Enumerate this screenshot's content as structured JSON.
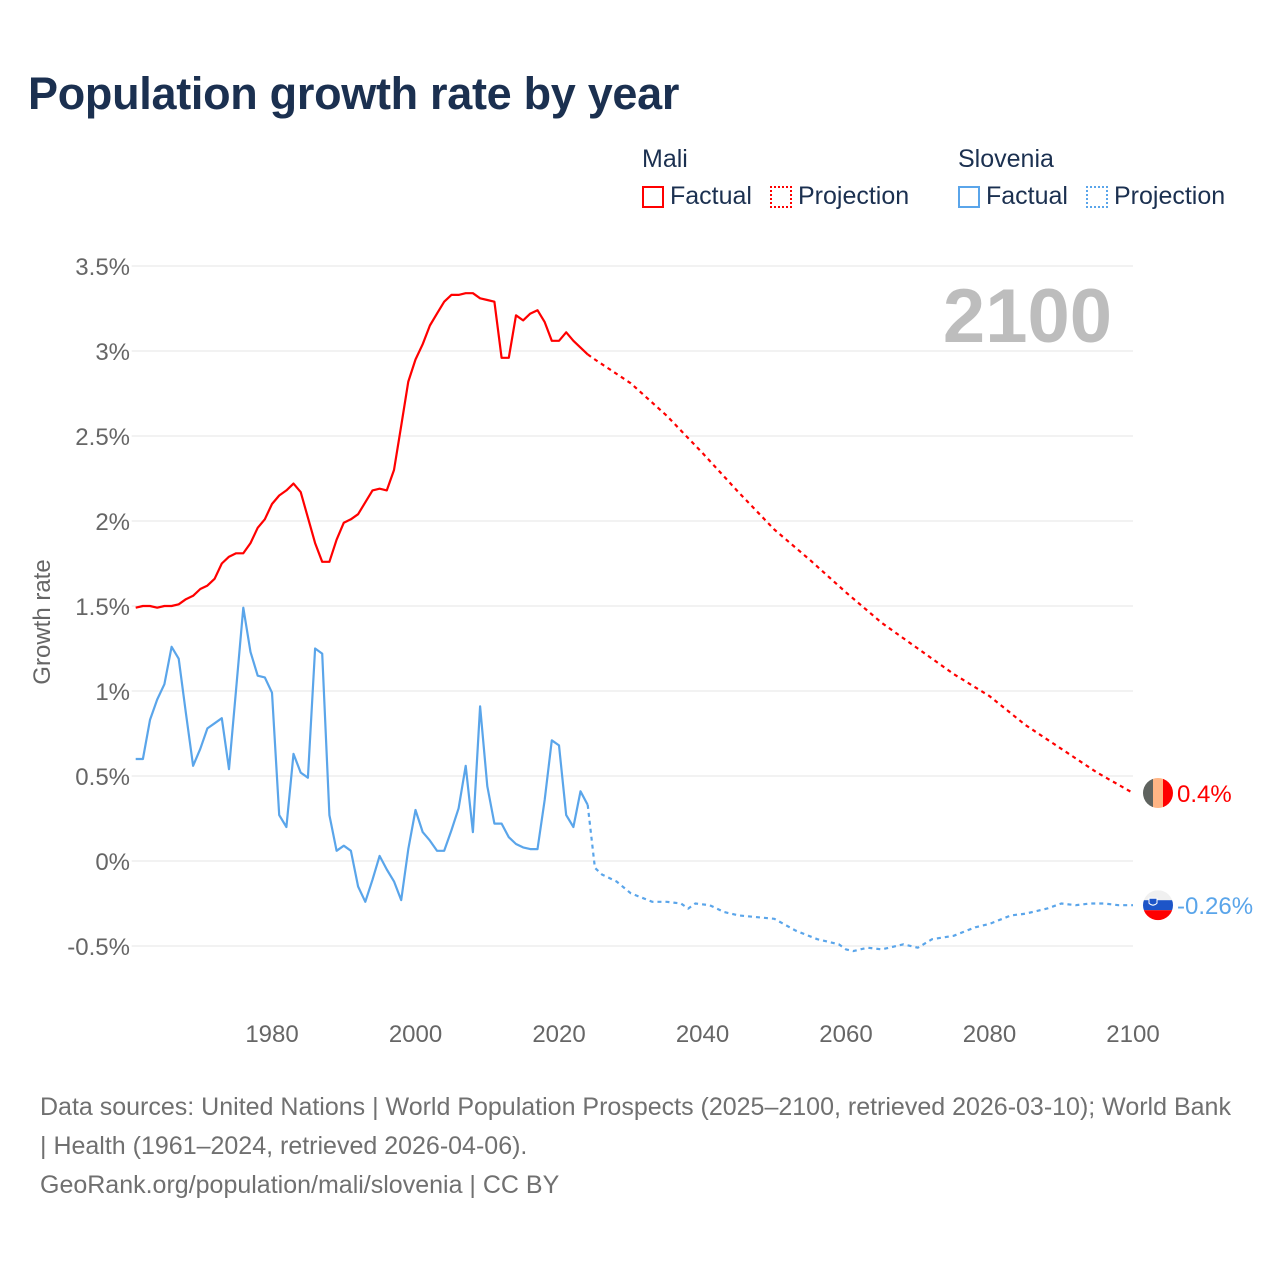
{
  "title": "Population growth rate by year",
  "legend": {
    "groups": [
      {
        "name": "Mali",
        "color": "#ff0000",
        "items": [
          "Factual",
          "Projection"
        ]
      },
      {
        "name": "Slovenia",
        "color": "#5aa5ea",
        "items": [
          "Factual",
          "Projection"
        ]
      }
    ]
  },
  "year_label": "2100",
  "footer": {
    "sources": "Data sources: United Nations | World Population Prospects (2025–2100, retrieved 2026-03-10); World Bank | Health (1961–2024, retrieved 2026-04-06).",
    "credit": "GeoRank.org/population/mali/slovenia | CC BY"
  },
  "chart_data": {
    "type": "line",
    "title": "Population growth rate by year",
    "xlabel": "",
    "ylabel": "Growth rate",
    "xlim": [
      1961,
      2100
    ],
    "ylim": [
      -0.5,
      3.5
    ],
    "x_ticks": [
      1980,
      2000,
      2020,
      2040,
      2060,
      2080,
      2100
    ],
    "y_ticks": [
      -0.5,
      0,
      0.5,
      1,
      1.5,
      2,
      2.5,
      3,
      3.5
    ],
    "y_tick_labels": [
      "-0.5%",
      "0%",
      "0.5%",
      "1%",
      "1.5%",
      "2%",
      "2.5%",
      "3%",
      "3.5%"
    ],
    "grid": true,
    "legend_position": "top-right",
    "series": [
      {
        "name": "Mali",
        "kind": "Factual",
        "color": "#ff0000",
        "end_label": "0.4%",
        "x": [
          1961,
          1962,
          1963,
          1964,
          1965,
          1966,
          1967,
          1968,
          1969,
          1970,
          1971,
          1972,
          1973,
          1974,
          1975,
          1976,
          1977,
          1978,
          1979,
          1980,
          1981,
          1982,
          1983,
          1984,
          1985,
          1986,
          1987,
          1988,
          1989,
          1990,
          1991,
          1992,
          1993,
          1994,
          1995,
          1996,
          1997,
          1998,
          1999,
          2000,
          2001,
          2002,
          2003,
          2004,
          2005,
          2006,
          2007,
          2008,
          2009,
          2010,
          2011,
          2012,
          2013,
          2014,
          2015,
          2016,
          2017,
          2018,
          2019,
          2020,
          2021,
          2022,
          2023,
          2024
        ],
        "values": [
          1.49,
          1.5,
          1.5,
          1.49,
          1.5,
          1.5,
          1.51,
          1.54,
          1.56,
          1.6,
          1.62,
          1.66,
          1.75,
          1.79,
          1.81,
          1.81,
          1.87,
          1.96,
          2.01,
          2.1,
          2.15,
          2.18,
          2.22,
          2.17,
          2.02,
          1.87,
          1.76,
          1.76,
          1.89,
          1.99,
          2.01,
          2.04,
          2.11,
          2.18,
          2.19,
          2.18,
          2.3,
          2.56,
          2.82,
          2.95,
          3.04,
          3.15,
          3.22,
          3.29,
          3.33,
          3.33,
          3.34,
          3.34,
          3.31,
          3.3,
          3.29,
          2.96,
          2.96,
          3.21,
          3.18,
          3.22,
          3.24,
          3.17,
          3.06,
          3.06,
          3.11,
          3.06,
          3.02,
          2.98
        ]
      },
      {
        "name": "Mali",
        "kind": "Projection",
        "color": "#ff0000",
        "x": [
          2024,
          2025,
          2030,
          2035,
          2040,
          2045,
          2050,
          2055,
          2060,
          2065,
          2070,
          2075,
          2080,
          2085,
          2090,
          2095,
          2100
        ],
        "values": [
          2.98,
          2.95,
          2.81,
          2.62,
          2.4,
          2.17,
          1.95,
          1.77,
          1.58,
          1.4,
          1.25,
          1.1,
          0.97,
          0.8,
          0.66,
          0.52,
          0.4
        ]
      },
      {
        "name": "Slovenia",
        "kind": "Factual",
        "color": "#5aa5ea",
        "end_label": "-0.26%",
        "x": [
          1961,
          1962,
          1963,
          1964,
          1965,
          1966,
          1967,
          1968,
          1969,
          1970,
          1971,
          1972,
          1973,
          1974,
          1975,
          1976,
          1977,
          1978,
          1979,
          1980,
          1981,
          1982,
          1983,
          1984,
          1985,
          1986,
          1987,
          1988,
          1989,
          1990,
          1991,
          1992,
          1993,
          1994,
          1995,
          1996,
          1997,
          1998,
          1999,
          2000,
          2001,
          2002,
          2003,
          2004,
          2005,
          2006,
          2007,
          2008,
          2009,
          2010,
          2011,
          2012,
          2013,
          2014,
          2015,
          2016,
          2017,
          2018,
          2019,
          2020,
          2021,
          2022,
          2023,
          2024
        ],
        "values": [
          0.6,
          0.6,
          0.83,
          0.95,
          1.04,
          1.26,
          1.19,
          0.87,
          0.56,
          0.66,
          0.78,
          0.81,
          0.84,
          0.54,
          1.01,
          1.49,
          1.23,
          1.09,
          1.08,
          0.99,
          0.27,
          0.2,
          0.63,
          0.52,
          0.49,
          1.25,
          1.22,
          0.27,
          0.06,
          0.09,
          0.06,
          -0.15,
          -0.24,
          -0.11,
          0.03,
          -0.05,
          -0.12,
          -0.23,
          0.07,
          0.3,
          0.17,
          0.12,
          0.06,
          0.06,
          0.18,
          0.31,
          0.56,
          0.17,
          0.91,
          0.44,
          0.22,
          0.22,
          0.14,
          0.1,
          0.08,
          0.07,
          0.07,
          0.36,
          0.71,
          0.68,
          0.27,
          0.2,
          0.41,
          0.33
        ]
      },
      {
        "name": "Slovenia",
        "kind": "Projection",
        "color": "#5aa5ea",
        "x": [
          2024,
          2025,
          2026,
          2028,
          2030,
          2033,
          2035,
          2037,
          2038,
          2039,
          2041,
          2043,
          2045,
          2050,
          2053,
          2056,
          2059,
          2060,
          2061,
          2063,
          2065,
          2068,
          2070,
          2072,
          2075,
          2078,
          2080,
          2083,
          2085,
          2088,
          2090,
          2092,
          2094,
          2096,
          2098,
          2100
        ],
        "values": [
          0.33,
          -0.04,
          -0.08,
          -0.12,
          -0.19,
          -0.24,
          -0.24,
          -0.25,
          -0.28,
          -0.25,
          -0.26,
          -0.3,
          -0.32,
          -0.34,
          -0.41,
          -0.46,
          -0.49,
          -0.52,
          -0.53,
          -0.51,
          -0.52,
          -0.49,
          -0.51,
          -0.46,
          -0.44,
          -0.39,
          -0.37,
          -0.32,
          -0.31,
          -0.28,
          -0.25,
          -0.26,
          -0.25,
          -0.25,
          -0.26,
          -0.26
        ]
      }
    ]
  }
}
